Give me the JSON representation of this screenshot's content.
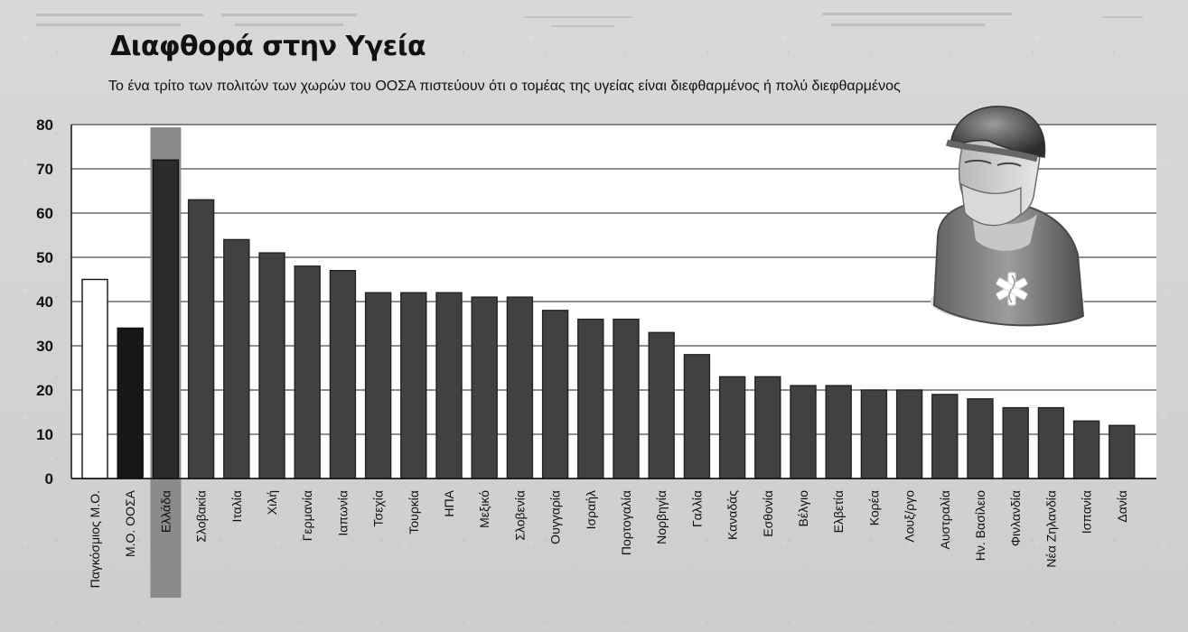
{
  "chart_data": {
    "type": "bar",
    "title": "Διαφθορά στην Υγεία",
    "subtitle": "Το ένα τρίτο των πολιτών των χωρών του ΟΟΣΑ πιστεύουν ότι ο τομέας της υγείας είναι διεφθαρμένος ή πολύ διεφθαρμένος",
    "categories": [
      "Παγκόσμιος Μ.Ο.",
      "Μ.Ο. ΟΟΣΑ",
      "Ελλάδα",
      "Σλοβακία",
      "Ιταλία",
      "Χιλή",
      "Γερμανία",
      "Ιαπωνία",
      "Τσεχία",
      "Τουρκία",
      "ΗΠΑ",
      "Μεξικό",
      "Σλοβενία",
      "Ουγγαρία",
      "Ισραήλ",
      "Πορτογαλία",
      "Νορβηγία",
      "Γαλλία",
      "Καναδάς",
      "Εσθονία",
      "Βέλγιο",
      "Ελβετία",
      "Κορέα",
      "Λουξ/ργο",
      "Αυστραλία",
      "Ην. Βασίλειο",
      "Φινλανδία",
      "Νέα Ζηλανδία",
      "Ισπανία",
      "Δανία"
    ],
    "values": [
      45,
      34,
      72,
      63,
      54,
      51,
      48,
      47,
      42,
      42,
      42,
      41,
      41,
      38,
      36,
      36,
      33,
      28,
      23,
      23,
      21,
      21,
      20,
      20,
      19,
      18,
      16,
      16,
      13,
      12
    ],
    "xlabel": "",
    "ylabel": "",
    "ylim": [
      0,
      80
    ],
    "yticks": [
      0,
      10,
      20,
      30,
      40,
      50,
      60,
      70,
      80
    ],
    "grid": true,
    "legend": "none",
    "colors": {
      "bar": "#414141",
      "world_average_fill": "#ffffff",
      "oecd_average_fill": "#171717",
      "greece_highlight": "#8b8b8b",
      "greece_bar": "#2b2b2b",
      "plot_background": "#ffffff",
      "gridline": "#4a4a4a"
    }
  }
}
